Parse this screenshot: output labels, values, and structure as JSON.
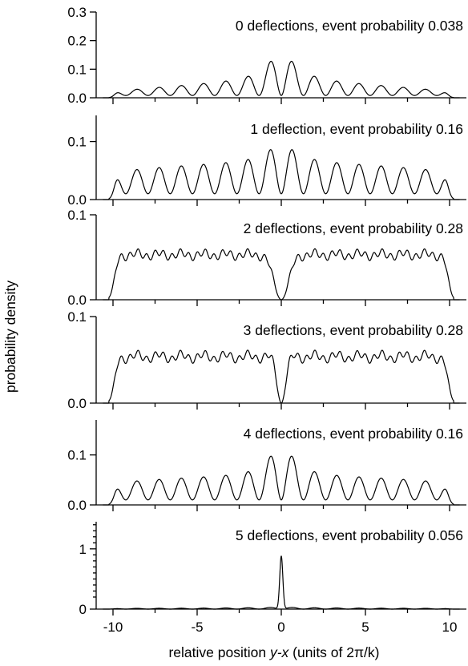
{
  "chart_data": {
    "type": "line",
    "xlabel_prefix": "relative position ",
    "xlabel_var": "y-x",
    "xlabel_suffix": " (units of 2π/k)",
    "ylabel": "probability density",
    "xlim": [
      -11,
      11
    ],
    "xticks": [
      -10,
      -5,
      0,
      5,
      10
    ],
    "xtick_labels": [
      "-10",
      "-5",
      "0",
      "5",
      "10"
    ],
    "panels": [
      {
        "title": "0 deflections, event probability 0.038",
        "ylim": [
          0,
          0.3
        ],
        "yticks": [
          0,
          0.1,
          0.2,
          0.3
        ],
        "ytick_labels": [
          "0.0",
          "0.1",
          "0.2",
          "0.3"
        ],
        "series": {
          "edge": 9.9,
          "base": 0.008,
          "env": 0.055,
          "envExp": 1.0,
          "near": 0.12,
          "nearW": 0.9,
          "gap": 0
        }
      },
      {
        "title": "1 deflection, event probability 0.16",
        "ylim": [
          0,
          0.145
        ],
        "yticks": [
          0,
          0.1
        ],
        "ytick_labels": [
          "0.0",
          "0.1"
        ],
        "series": {
          "edge": 9.9,
          "base": 0.01,
          "env": 0.055,
          "envExp": 0.3,
          "near": 0.04,
          "nearW": 0.9,
          "gap": 0
        }
      },
      {
        "title": "2 deflections, event probability 0.28",
        "ylim": [
          0,
          0.1
        ],
        "yticks": [
          0,
          0.1
        ],
        "ytick_labels": [
          "0.0",
          "0.1"
        ],
        "series": {
          "edge": 9.9,
          "base": 0.05,
          "env": 0.01,
          "envExp": 0,
          "near": 0,
          "nearW": 1,
          "gap": 0.6
        }
      },
      {
        "title": "3 deflections, event probability 0.28",
        "ylim": [
          0,
          0.1
        ],
        "yticks": [
          0,
          0.1
        ],
        "ytick_labels": [
          "0.0",
          "0.1"
        ],
        "series": {
          "edge": 9.9,
          "base": 0.05,
          "env": 0.012,
          "envExp": 0,
          "near": 0,
          "nearW": 1,
          "gap": 0.35
        }
      },
      {
        "title": "4 deflections, event probability 0.16",
        "ylim": [
          0,
          0.17
        ],
        "yticks": [
          0,
          0.1
        ],
        "ytick_labels": [
          "0.0",
          "0.1"
        ],
        "series": {
          "edge": 9.9,
          "base": 0.01,
          "env": 0.05,
          "envExp": 0.3,
          "near": 0.08,
          "nearW": 0.8,
          "gap": 0
        }
      },
      {
        "title": "5 deflections, event probability 0.056",
        "ylim": [
          0,
          1.45
        ],
        "yticks": [
          0,
          1
        ],
        "ytick_labels": [
          "0",
          "1"
        ],
        "series": {
          "edge": 9.9,
          "base": 0.01,
          "env": 0.05,
          "envExp": 0,
          "near": 0.0,
          "nearW": 1,
          "gap": 0,
          "spike": 0.88
        }
      }
    ]
  }
}
